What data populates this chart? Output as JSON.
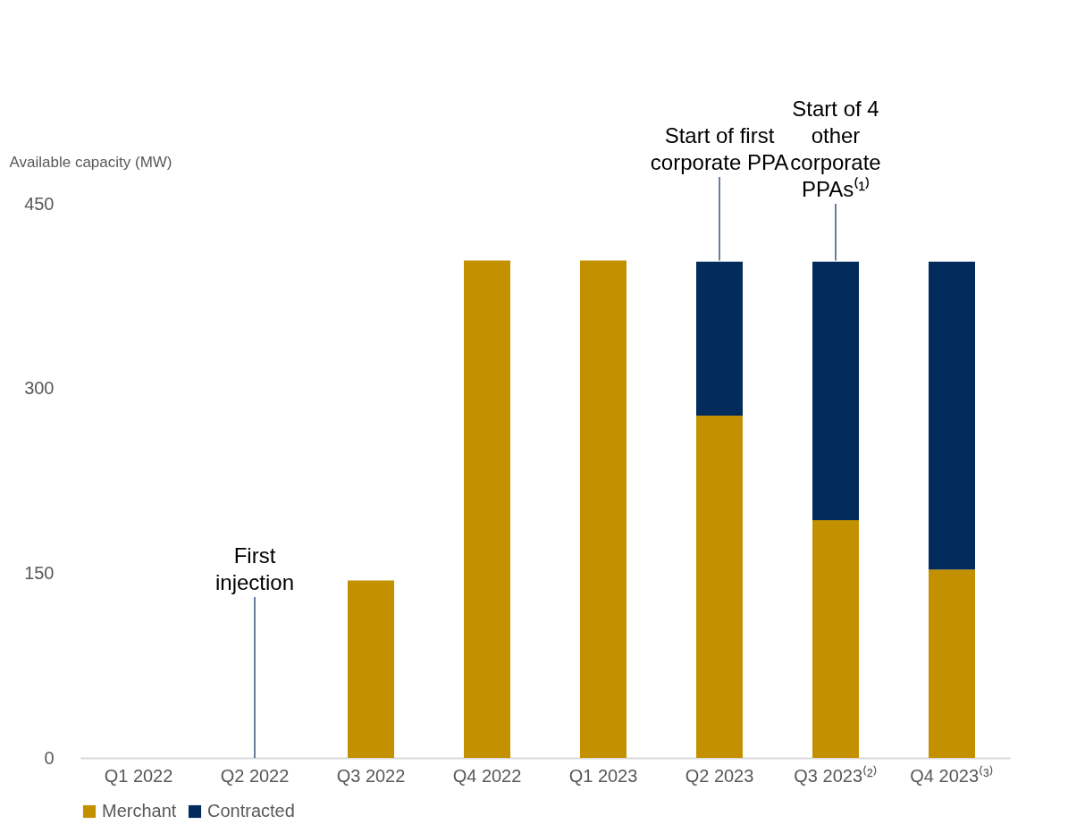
{
  "chart_data": {
    "type": "bar",
    "stacked": true,
    "ylabel": "Available capacity (MW)",
    "categories": [
      "Q1 2022",
      "Q2 2022",
      "Q3 2022",
      "Q4 2022",
      "Q1 2023",
      "Q2 2023",
      "Q3 2023⁽²⁾",
      "Q4 2023⁽³⁾"
    ],
    "series": [
      {
        "name": "Merchant",
        "color": "#c39100",
        "values": [
          0,
          0,
          144,
          404,
          404,
          278,
          193,
          153
        ]
      },
      {
        "name": "Contracted",
        "color": "#032b5c",
        "values": [
          0,
          0,
          0,
          0,
          0,
          125,
          210,
          250
        ]
      }
    ],
    "ylim": [
      0,
      450
    ],
    "yticks": [
      0,
      150,
      300,
      450
    ],
    "grid": false,
    "legend": "bottom",
    "annotations": [
      {
        "text": "First injection",
        "x": "Q2 2022",
        "y": 0
      },
      {
        "text": "Start of first corporate PPA",
        "x": "Q2 2023",
        "y": 404
      },
      {
        "text": "Start of 4 other corporate PPAs⁽¹⁾",
        "x": "Q3 2023⁽²⁾",
        "y": 404
      }
    ]
  }
}
